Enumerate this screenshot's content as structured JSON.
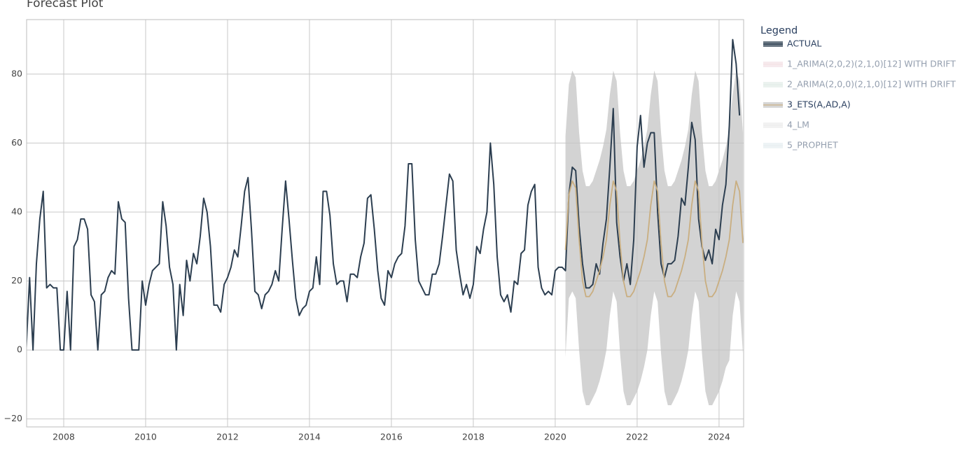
{
  "chart_data": {
    "type": "forecast",
    "title": "Forecast Plot",
    "legend_title": "Legend",
    "legend": "right",
    "grid": true,
    "xlim": [
      2007.094,
      2024.6
    ],
    "xticks": [
      2008,
      2010,
      2012,
      2014,
      2016,
      2018,
      2020,
      2022,
      2024
    ],
    "ylim": [
      -22.3,
      95.8
    ],
    "yticks": [
      {
        "value": -20,
        "label": "−20"
      },
      0,
      20,
      40,
      60,
      80
    ],
    "series": [
      {
        "name": "ACTUAL",
        "color": "#2c3e50",
        "visible": true,
        "x": [
          2007.083,
          2007.167,
          2007.25,
          2007.333,
          2007.417,
          2007.5,
          2007.583,
          2007.667,
          2007.75,
          2007.833,
          2007.917,
          2008,
          2008.083,
          2008.167,
          2008.25,
          2008.333,
          2008.417,
          2008.5,
          2008.583,
          2008.667,
          2008.75,
          2008.833,
          2008.917,
          2009,
          2009.083,
          2009.167,
          2009.25,
          2009.333,
          2009.417,
          2009.5,
          2009.583,
          2009.667,
          2009.75,
          2009.833,
          2009.917,
          2010,
          2010.083,
          2010.167,
          2010.25,
          2010.333,
          2010.417,
          2010.5,
          2010.583,
          2010.667,
          2010.75,
          2010.833,
          2010.917,
          2011,
          2011.083,
          2011.167,
          2011.25,
          2011.333,
          2011.417,
          2011.5,
          2011.583,
          2011.667,
          2011.75,
          2011.833,
          2011.917,
          2012,
          2012.083,
          2012.167,
          2012.25,
          2012.333,
          2012.417,
          2012.5,
          2012.583,
          2012.667,
          2012.75,
          2012.833,
          2012.917,
          2013,
          2013.083,
          2013.167,
          2013.25,
          2013.333,
          2013.417,
          2013.5,
          2013.583,
          2013.667,
          2013.75,
          2013.833,
          2013.917,
          2014,
          2014.083,
          2014.167,
          2014.25,
          2014.333,
          2014.417,
          2014.5,
          2014.583,
          2014.667,
          2014.75,
          2014.833,
          2014.917,
          2015,
          2015.083,
          2015.167,
          2015.25,
          2015.333,
          2015.417,
          2015.5,
          2015.583,
          2015.667,
          2015.75,
          2015.833,
          2015.917,
          2016,
          2016.083,
          2016.167,
          2016.25,
          2016.333,
          2016.417,
          2016.5,
          2016.583,
          2016.667,
          2016.75,
          2016.833,
          2016.917,
          2017,
          2017.083,
          2017.167,
          2017.25,
          2017.333,
          2017.417,
          2017.5,
          2017.583,
          2017.667,
          2017.75,
          2017.833,
          2017.917,
          2018,
          2018.083,
          2018.167,
          2018.25,
          2018.333,
          2018.417,
          2018.5,
          2018.583,
          2018.667,
          2018.75,
          2018.833,
          2018.917,
          2019,
          2019.083,
          2019.167,
          2019.25,
          2019.333,
          2019.417,
          2019.5,
          2019.583,
          2019.667,
          2019.75,
          2019.833,
          2019.917,
          2020,
          2020.083,
          2020.167,
          2020.25,
          2020.333,
          2020.417,
          2020.5,
          2020.583,
          2020.667,
          2020.75,
          2020.833,
          2020.917,
          2021,
          2021.083,
          2021.167,
          2021.25,
          2021.333,
          2021.417,
          2021.5,
          2021.583,
          2021.667,
          2021.75,
          2021.833,
          2021.917,
          2022,
          2022.083,
          2022.167,
          2022.25,
          2022.333,
          2022.417,
          2022.5,
          2022.583,
          2022.667,
          2022.75,
          2022.833,
          2022.917,
          2023,
          2023.083,
          2023.167,
          2023.25,
          2023.333,
          2023.417,
          2023.5,
          2023.583,
          2023.667,
          2023.75,
          2023.833,
          2023.917,
          2024,
          2024.083,
          2024.167,
          2024.25,
          2024.333,
          2024.417,
          2024.5
        ],
        "values": [
          0,
          21,
          0,
          25,
          38,
          46,
          18,
          19,
          18,
          18,
          0,
          0,
          17,
          0,
          30,
          32,
          38,
          38,
          35,
          16,
          14,
          0,
          16,
          17,
          21,
          23,
          22,
          43,
          38,
          37,
          15,
          0,
          0,
          0,
          20,
          13,
          19,
          23,
          24,
          25,
          43,
          36,
          24,
          19,
          0,
          19,
          10,
          26,
          20,
          28,
          25,
          33,
          44,
          40,
          30,
          13,
          13,
          11,
          19,
          21,
          24,
          29,
          27,
          36,
          46,
          50,
          35,
          17,
          16,
          12,
          16,
          17,
          19,
          23,
          20,
          35,
          49,
          38,
          26,
          15,
          10,
          12,
          13,
          17,
          18,
          27,
          19,
          46,
          46,
          39,
          25,
          19,
          20,
          20,
          14,
          22,
          22,
          21,
          27,
          31,
          44,
          45,
          35,
          23,
          15,
          13,
          23,
          21,
          25,
          27,
          28,
          36,
          54,
          54,
          32,
          20,
          18,
          16,
          16,
          22,
          22,
          25,
          33,
          42,
          51,
          49,
          29,
          22,
          16,
          19,
          15,
          19,
          30,
          28,
          35,
          40,
          60,
          48,
          27,
          16,
          14,
          16,
          11,
          20,
          19,
          28,
          29,
          42,
          46,
          48,
          24,
          18,
          16,
          17,
          16,
          23,
          24,
          24,
          23,
          45,
          53,
          52,
          36,
          25,
          18,
          18,
          19,
          25,
          22,
          31,
          38,
          53,
          70,
          37,
          27,
          20,
          25,
          19,
          32,
          59,
          68,
          53,
          60,
          63,
          63,
          40,
          25,
          21,
          25,
          25,
          26,
          33,
          44,
          42,
          53,
          66,
          61,
          38,
          30,
          26,
          29,
          25,
          35,
          32,
          42,
          48,
          65,
          90,
          83,
          68
        ]
      },
      {
        "name": "1_ARIMA(2,0,2)(2,1,0)[12] WITH DRIFT",
        "color": "#e7c3cc",
        "visible": false
      },
      {
        "name": "2_ARIMA(2,0,0)(2,1,0)[12] WITH DRIFT",
        "color": "#c7dcd2",
        "visible": false
      },
      {
        "name": "3_ETS(A,AD,A)",
        "color": "#c9ae80",
        "band_color": "#c4c4c4",
        "visible": true,
        "x": [
          2020.25,
          2020.333,
          2020.417,
          2020.5,
          2020.583,
          2020.667,
          2020.75,
          2020.833,
          2020.917,
          2021,
          2021.083,
          2021.167,
          2021.25,
          2021.333,
          2021.417,
          2021.5,
          2021.583,
          2021.667,
          2021.75,
          2021.833,
          2021.917,
          2022,
          2022.083,
          2022.167,
          2022.25,
          2022.333,
          2022.417,
          2022.5,
          2022.583,
          2022.667,
          2022.75,
          2022.833,
          2022.917,
          2023,
          2023.083,
          2023.167,
          2023.25,
          2023.333,
          2023.417,
          2023.5,
          2023.583,
          2023.667,
          2023.75,
          2023.833,
          2023.917,
          2024,
          2024.083,
          2024.167,
          2024.25,
          2024.333,
          2024.417,
          2024.5,
          2024.583
        ],
        "values": [
          29,
          45,
          49,
          47,
          32,
          20,
          15.5,
          15.5,
          17,
          20,
          23,
          27,
          32,
          42,
          49,
          46,
          31,
          20,
          15.5,
          15.5,
          17,
          20,
          23,
          27,
          32,
          42,
          49,
          46,
          31,
          20,
          15.5,
          15.5,
          17,
          20,
          23,
          27,
          32,
          42,
          49,
          46,
          31,
          20,
          15.5,
          15.5,
          17,
          20,
          23,
          27,
          32,
          42,
          49,
          46,
          31
        ],
        "lower": [
          -2,
          15,
          17,
          15,
          0,
          -12,
          -16,
          -16,
          -14,
          -12,
          -9,
          -5,
          0,
          10,
          17,
          14,
          -1,
          -12,
          -16,
          -16,
          -14,
          -12,
          -9,
          -5,
          0,
          10,
          17,
          14,
          -1,
          -12,
          -16,
          -16,
          -14,
          -12,
          -9,
          -5,
          0,
          10,
          17,
          14,
          -1,
          -12,
          -16,
          -16,
          -14,
          -12,
          -9,
          -5,
          -3,
          10,
          17,
          14,
          -1
        ],
        "upper": [
          62,
          77,
          81,
          79,
          63,
          52,
          47.5,
          47.5,
          49,
          52,
          55,
          59,
          64,
          74,
          81,
          78,
          63,
          52,
          47.5,
          47.5,
          49,
          52,
          55,
          59,
          64,
          74,
          81,
          78,
          63,
          52,
          47.5,
          47.5,
          49,
          52,
          55,
          59,
          64,
          74,
          81,
          78,
          63,
          52,
          47.5,
          47.5,
          49,
          52,
          55,
          59,
          64,
          74,
          81,
          78,
          63
        ]
      },
      {
        "name": "4_LM",
        "color": "#dcdcdc",
        "visible": false
      },
      {
        "name": "5_PROPHET",
        "color": "#cfdde3",
        "visible": false
      }
    ]
  }
}
